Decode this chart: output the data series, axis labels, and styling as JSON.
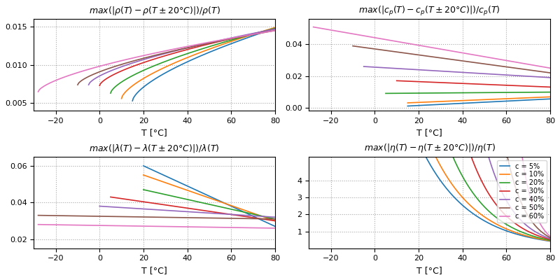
{
  "colors": [
    "#1f77b4",
    "#ff7f0e",
    "#2ca02c",
    "#d62728",
    "#9467bd",
    "#8c564b",
    "#e377c2"
  ],
  "labels": [
    "c = 5%",
    "c = 10%",
    "c = 20%",
    "c = 30%",
    "c = 40%",
    "c = 50%",
    "c = 60%"
  ],
  "rho_starts": [
    15,
    10,
    5,
    0,
    -5,
    -10,
    -28
  ],
  "rho_start_vals": [
    0.0053,
    0.0056,
    0.0063,
    0.0073,
    0.0074,
    0.0074,
    0.0065
  ],
  "rho_end_vals": [
    0.0148,
    0.0149,
    0.0148,
    0.0147,
    0.0147,
    0.0145,
    0.0145
  ],
  "cp_starts": [
    15,
    15,
    5,
    10,
    -5,
    -10,
    -28
  ],
  "cp_start_vals": [
    0.001,
    0.003,
    0.009,
    0.017,
    0.026,
    0.039,
    0.051
  ],
  "cp_end_vals": [
    0.0055,
    0.0068,
    0.0098,
    0.013,
    0.019,
    0.022,
    0.025
  ],
  "lam_starts": [
    20,
    20,
    20,
    5,
    0,
    -28,
    -28
  ],
  "lam_start_vals": [
    0.06,
    0.055,
    0.047,
    0.043,
    0.038,
    0.033,
    0.028
  ],
  "lam_end_vals": [
    0.027,
    0.03,
    0.031,
    0.03,
    0.032,
    0.031,
    0.026
  ],
  "eta_a": [
    0.42,
    0.44,
    0.47,
    0.52,
    0.57,
    0.63,
    0.7
  ],
  "eta_b": [
    0.045,
    0.048,
    0.055,
    0.065,
    0.08,
    0.11,
    0.16
  ],
  "eta_ylim": [
    0.0,
    5.4
  ],
  "eta_yticks": [
    1,
    2,
    3,
    4
  ],
  "rho_ylim": [
    0.004,
    0.016
  ],
  "rho_yticks": [
    0.005,
    0.01,
    0.015
  ],
  "cp_ylim": [
    -0.002,
    0.056
  ],
  "cp_yticks": [
    0.0,
    0.02,
    0.04
  ],
  "lam_ylim": [
    0.015,
    0.065
  ],
  "lam_yticks": [
    0.02,
    0.04,
    0.06
  ],
  "xticks": [
    -20,
    0,
    20,
    40,
    60,
    80
  ],
  "xlim": [
    -30,
    80
  ]
}
